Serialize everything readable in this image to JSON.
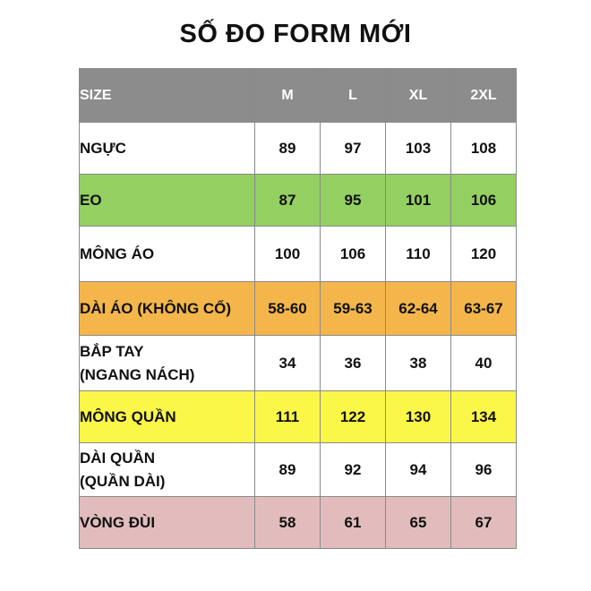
{
  "title": "SỐ ĐO FORM MỚI",
  "colors": {
    "header": "#8c8c8c",
    "white": "#ffffff",
    "green": "#94cf62",
    "orange": "#f4b64a",
    "yellow": "#fbf749",
    "pink": "#e2bcbd",
    "border": "#8a8a8a"
  },
  "table": {
    "header": [
      "SIZE",
      "M",
      "L",
      "XL",
      "2XL"
    ],
    "rows": [
      {
        "label_lines": [
          "NGỰC"
        ],
        "values": [
          "89",
          "97",
          "103",
          "108"
        ],
        "color": "white"
      },
      {
        "label_lines": [
          "EO"
        ],
        "values": [
          "87",
          "95",
          "101",
          "106"
        ],
        "color": "green"
      },
      {
        "label_lines": [
          "MÔNG ÁO"
        ],
        "values": [
          "100",
          "106",
          "110",
          "120"
        ],
        "color": "white"
      },
      {
        "label_lines": [
          "DÀI ÁO (KHÔNG CỔ)"
        ],
        "values": [
          "58-60",
          "59-63",
          "62-64",
          "63-67"
        ],
        "color": "orange"
      },
      {
        "label_lines": [
          "BẮP TAY",
          "(NGANG NÁCH)"
        ],
        "values": [
          "34",
          "36",
          "38",
          "40"
        ],
        "color": "white"
      },
      {
        "label_lines": [
          "MÔNG QUẦN"
        ],
        "values": [
          "111",
          "122",
          "130",
          "134"
        ],
        "color": "yellow"
      },
      {
        "label_lines": [
          "DÀI QUẦN",
          "(QUẦN DÀI)"
        ],
        "values": [
          "89",
          "92",
          "94",
          "96"
        ],
        "color": "white"
      },
      {
        "label_lines": [
          "VÒNG ĐÙI"
        ],
        "values": [
          "58",
          "61",
          "65",
          "67"
        ],
        "color": "pink"
      }
    ]
  }
}
